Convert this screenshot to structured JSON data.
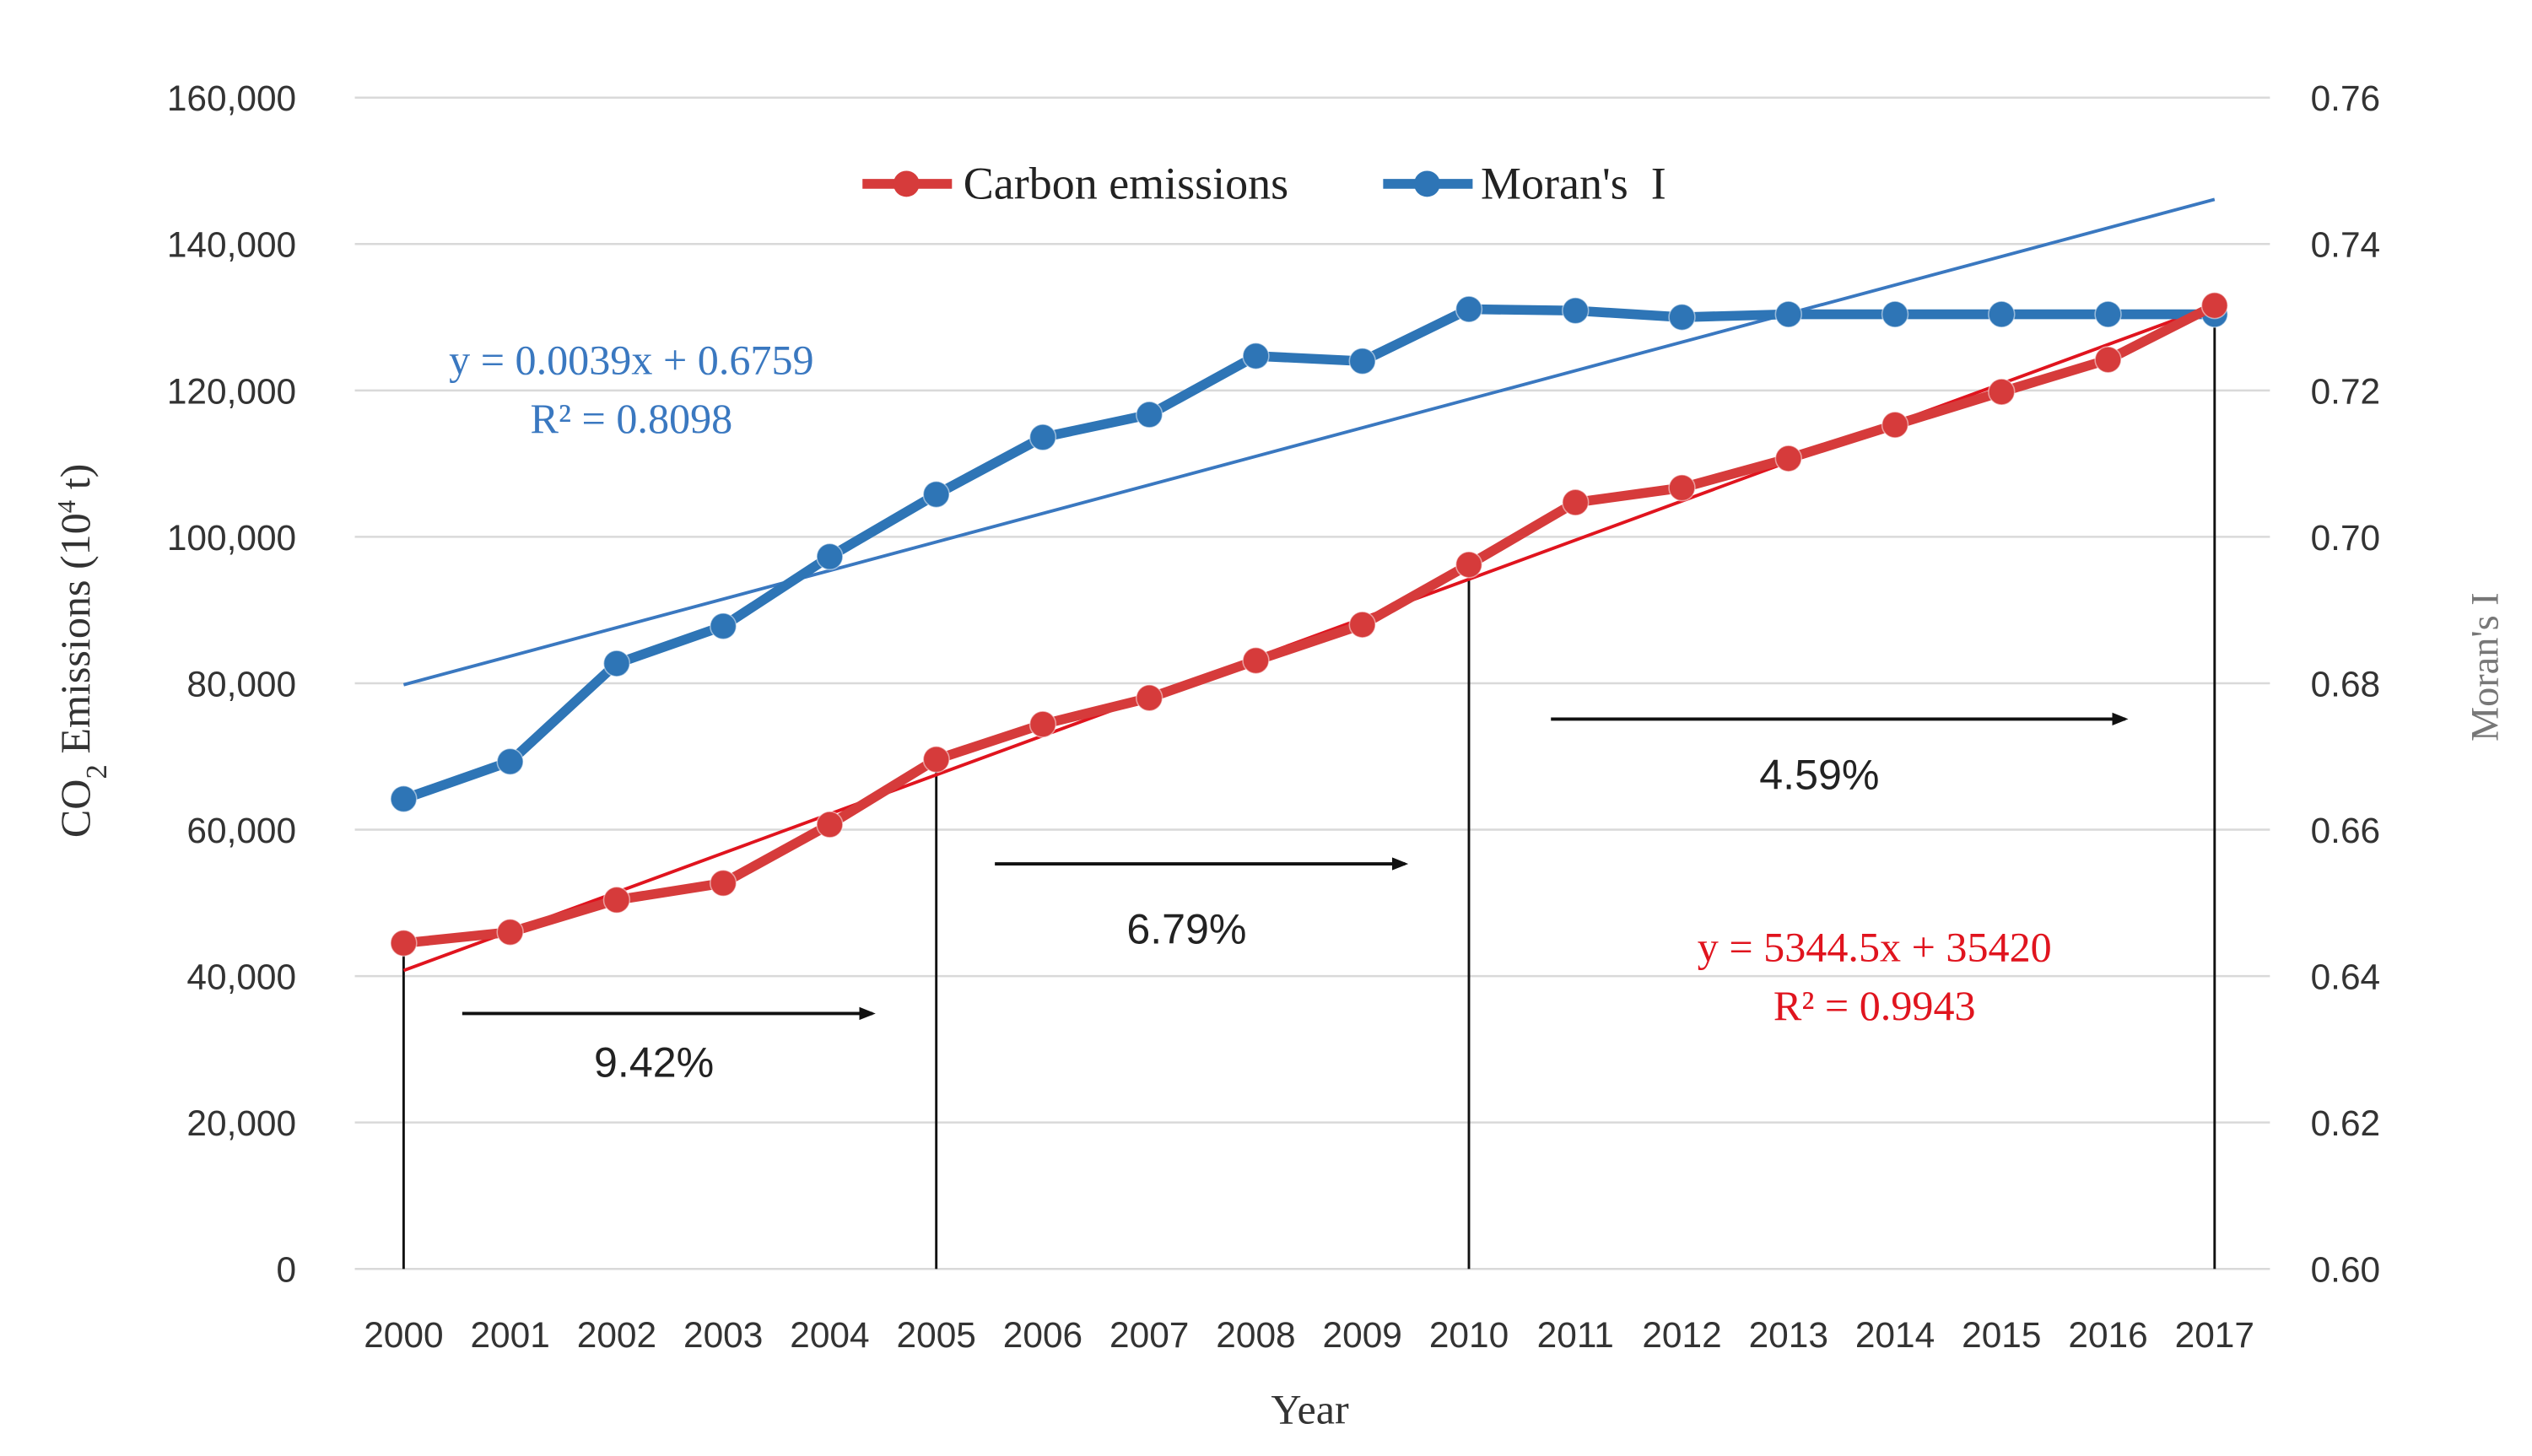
{
  "chart_data": {
    "type": "line",
    "xlabel": "Year",
    "ylabel_parts": [
      {
        "t": "CO",
        "s": ""
      },
      {
        "t": "2",
        "s": "sub"
      },
      {
        "t": " Emissions (10",
        "s": ""
      },
      {
        "t": "4",
        "s": "sup"
      },
      {
        "t": " t)",
        "s": ""
      }
    ],
    "y2label": "Moran's I",
    "x": [
      2000,
      2001,
      2002,
      2003,
      2004,
      2005,
      2006,
      2007,
      2008,
      2009,
      2010,
      2011,
      2012,
      2013,
      2014,
      2015,
      2016,
      2017
    ],
    "ylim": [
      0,
      160000
    ],
    "y_ticks": [
      "0",
      "20,000",
      "40,000",
      "60,000",
      "80,000",
      "100,000",
      "120,000",
      "140,000",
      "160,000"
    ],
    "y2lim": [
      0.6,
      0.76
    ],
    "y2_ticks": [
      "0.60",
      "0.62",
      "0.64",
      "0.66",
      "0.68",
      "0.70",
      "0.72",
      "0.74",
      "0.76"
    ],
    "grid": true,
    "legend_position": "top-center",
    "series": [
      {
        "name": "Carbon emissions",
        "axis": "left",
        "color": "#d63b3b",
        "values": [
          44500,
          46000,
          50400,
          52700,
          60700,
          69600,
          74400,
          78000,
          83100,
          88000,
          96200,
          104700,
          106700,
          110700,
          115300,
          119800,
          124200,
          131600
        ],
        "trendline": {
          "slope": 5344.5,
          "intercept": 35420,
          "equation": "y = 5344.5x + 35420",
          "r2": "R² = 0.9943",
          "color": "#e0141e"
        }
      },
      {
        "name": "Moran's  I",
        "axis": "right",
        "color": "#2e75b6",
        "values": [
          0.6642,
          0.6693,
          0.6827,
          0.6878,
          0.6973,
          0.7058,
          0.7136,
          0.7167,
          0.7247,
          0.724,
          0.7311,
          0.7309,
          0.73,
          0.7304,
          0.7304,
          0.7304,
          0.7304,
          0.7304
        ],
        "trendline": {
          "slope": 0.0039,
          "intercept": 0.6759,
          "equation": "y = 0.0039x + 0.6759",
          "r2": "R² = 0.8098",
          "color": "#3a78c0"
        }
      }
    ],
    "annotations": {
      "period_markers": [
        2000,
        2005,
        2010,
        2017
      ],
      "growth_rates": [
        {
          "from": 2000,
          "to": 2005,
          "label": "9.42%"
        },
        {
          "from": 2005,
          "to": 2010,
          "label": "6.79%"
        },
        {
          "from": 2010,
          "to": 2017,
          "label": "4.59%"
        }
      ]
    }
  }
}
